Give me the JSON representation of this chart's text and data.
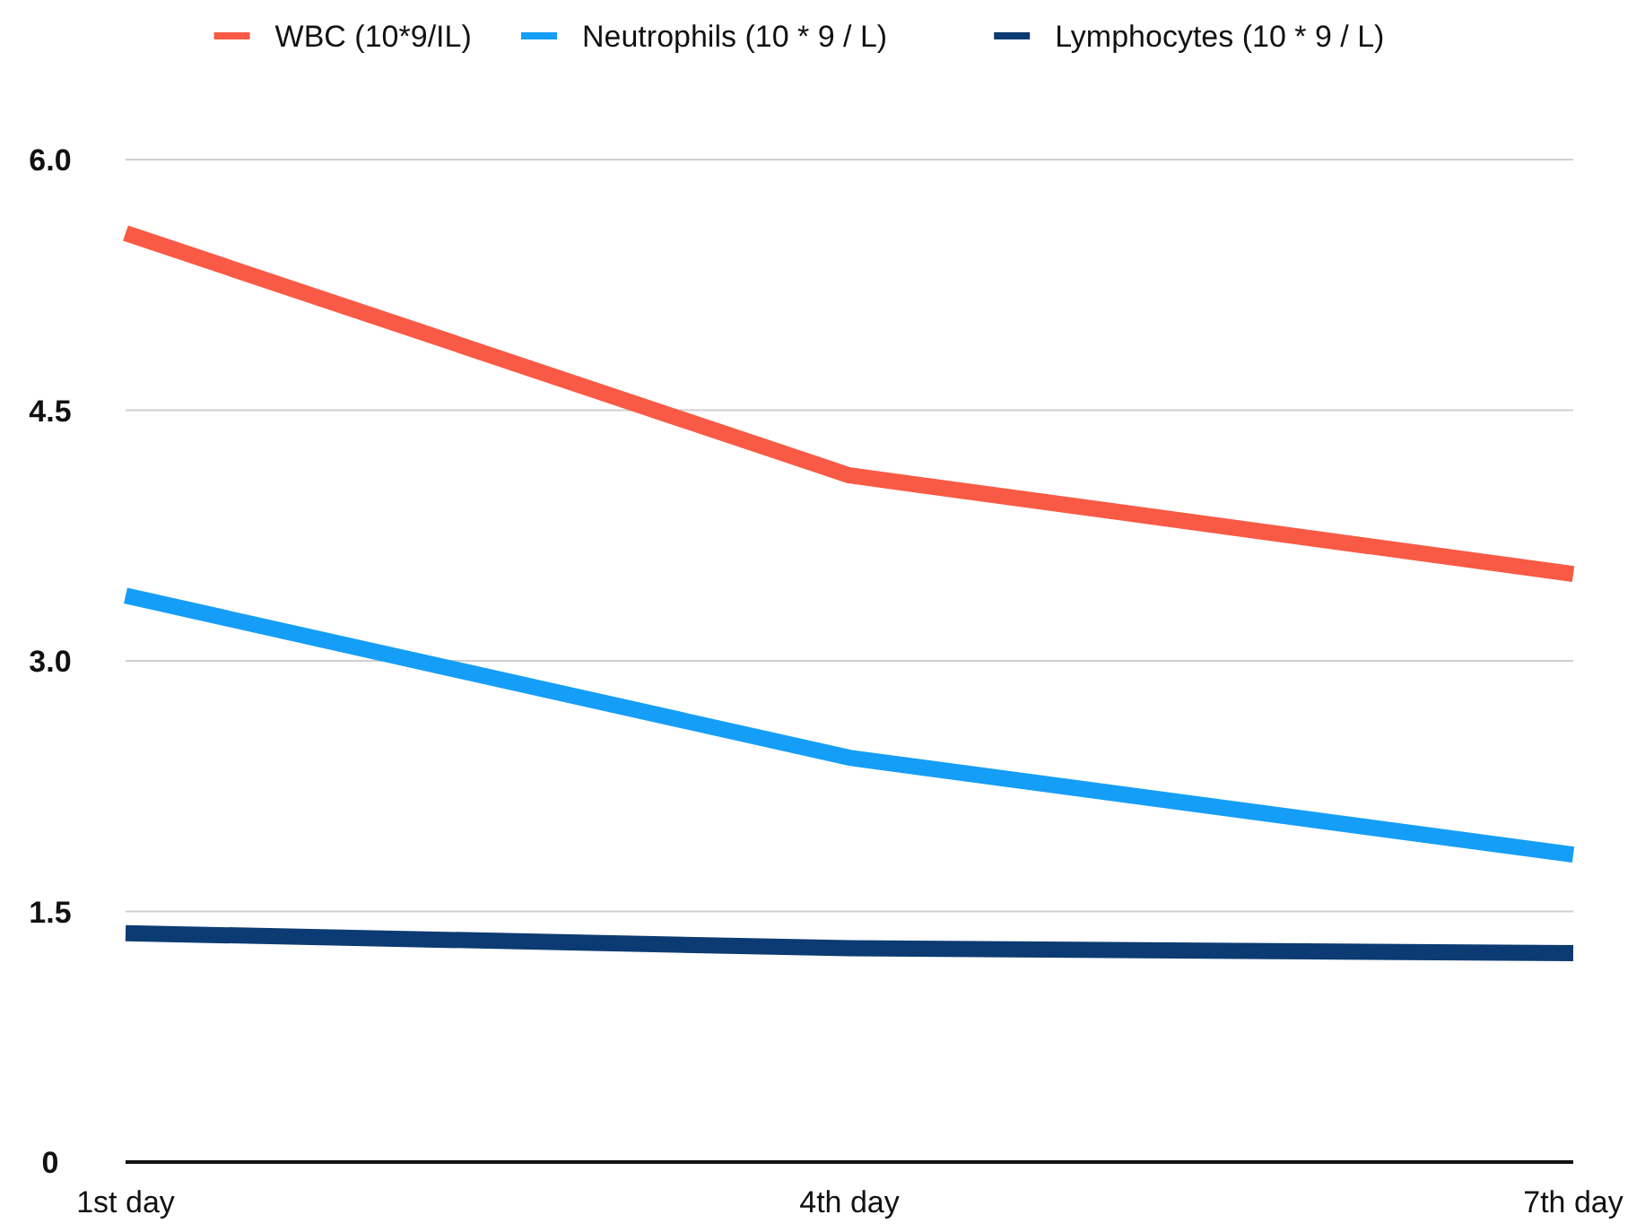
{
  "chart_data": {
    "type": "line",
    "categories": [
      "1st day",
      "4th day",
      "7th day"
    ],
    "series": [
      {
        "name": "WBC (10*9/IL)",
        "color": "#f95a45",
        "values": [
          5.56,
          4.11,
          3.52
        ]
      },
      {
        "name": "Neutrophils (10 * 9 / L)",
        "color": "#159ef7",
        "values": [
          3.39,
          2.42,
          1.84
        ]
      },
      {
        "name": "Lymphocytes (10 * 9 / L)",
        "color": "#0b3b72",
        "values": [
          1.37,
          1.28,
          1.25
        ]
      }
    ],
    "ylim": [
      0,
      6
    ],
    "yticks": [
      {
        "value": 0,
        "label": "0"
      },
      {
        "value": 1.5,
        "label": "1.5"
      },
      {
        "value": 3,
        "label": "3.0"
      },
      {
        "value": 4.5,
        "label": "4.5"
      },
      {
        "value": 6,
        "label": "6.0"
      }
    ],
    "grid": "y",
    "legend": "top",
    "marker": "none",
    "line_style": "solid"
  }
}
